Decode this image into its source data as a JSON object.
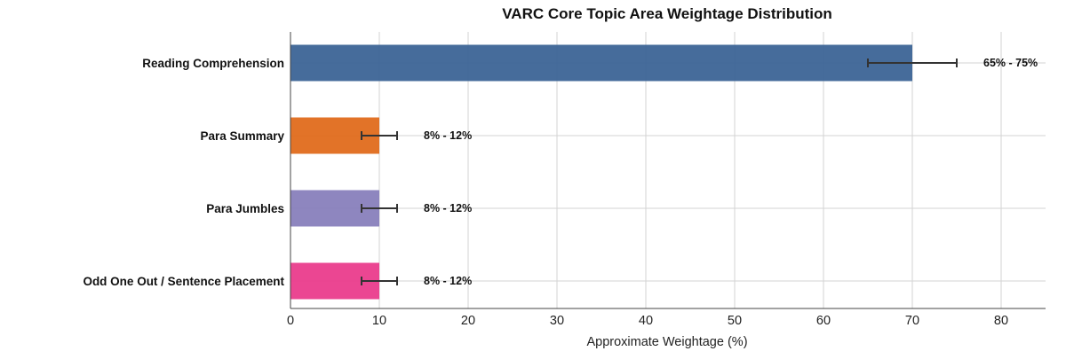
{
  "chart_data": {
    "type": "bar",
    "orientation": "horizontal",
    "title": "VARC Core Topic Area Weightage Distribution",
    "xlabel": "Approximate Weightage (%)",
    "ylabel": "",
    "xlim": [
      0,
      85
    ],
    "xticks": [
      0,
      10,
      20,
      30,
      40,
      50,
      60,
      70,
      80
    ],
    "grid": true,
    "categories": [
      "Reading Comprehension",
      "Para Summary",
      "Para Jumbles",
      "Odd One Out / Sentence Placement"
    ],
    "values": [
      70,
      10,
      10,
      10
    ],
    "error_low": [
      65,
      8,
      8,
      8
    ],
    "error_high": [
      75,
      12,
      12,
      12
    ],
    "annotations": [
      "65% - 75%",
      "8% - 12%",
      "8% - 12%",
      "8% - 12%"
    ],
    "colors": [
      "#3c6496",
      "#e06b1c",
      "#8880bc",
      "#ea3c8c"
    ]
  }
}
